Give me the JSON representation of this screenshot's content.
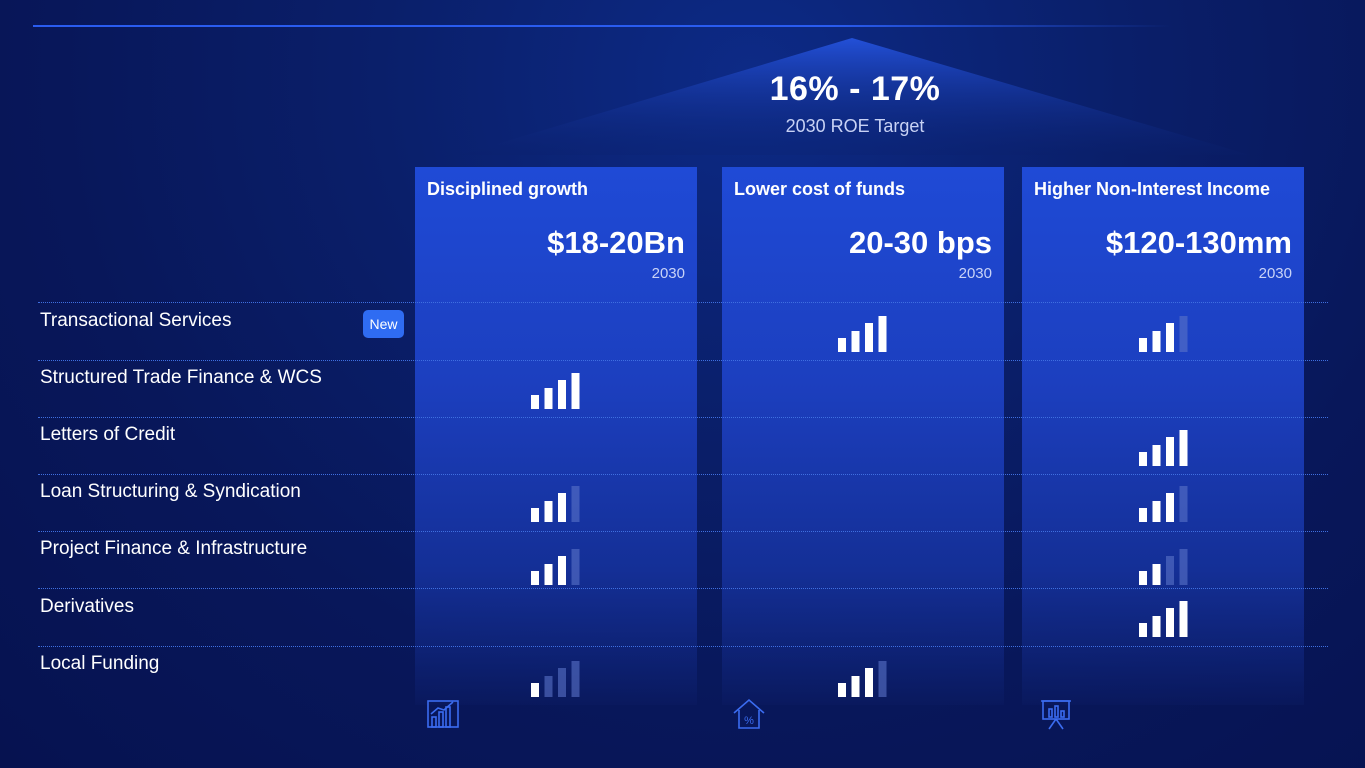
{
  "target": {
    "value": "16% - 17%",
    "label": "2030 ROE Target"
  },
  "pillars": [
    {
      "title": "Disciplined growth",
      "value": "$18-20Bn",
      "year": "2030",
      "icon": "bar-chart-growth-icon"
    },
    {
      "title": "Lower cost of funds",
      "value": "20-30 bps",
      "year": "2030",
      "icon": "house-percent-icon"
    },
    {
      "title": "Higher Non-Interest Income",
      "value": "$120-130mm",
      "year": "2030",
      "icon": "presentation-chart-icon"
    }
  ],
  "new_badge": "New",
  "rows": [
    {
      "label": "Transactional Services",
      "levels": [
        null,
        4,
        3
      ]
    },
    {
      "label": "Structured Trade Finance & WCS",
      "levels": [
        4,
        null,
        null
      ]
    },
    {
      "label": "Letters of Credit",
      "levels": [
        null,
        null,
        4
      ]
    },
    {
      "label": "Loan Structuring & Syndication",
      "levels": [
        3,
        null,
        3
      ]
    },
    {
      "label": "Project Finance & Infrastructure",
      "levels": [
        3,
        null,
        2
      ]
    },
    {
      "label": "Derivatives",
      "levels": [
        null,
        null,
        4
      ]
    },
    {
      "label": "Local Funding",
      "levels": [
        1,
        3,
        null
      ]
    }
  ],
  "colors": {
    "bar_active": "#ffffff",
    "bar_inactive": "#5a73c8",
    "accent": "#2f6cf2",
    "pillar": "#1f4ad6"
  }
}
